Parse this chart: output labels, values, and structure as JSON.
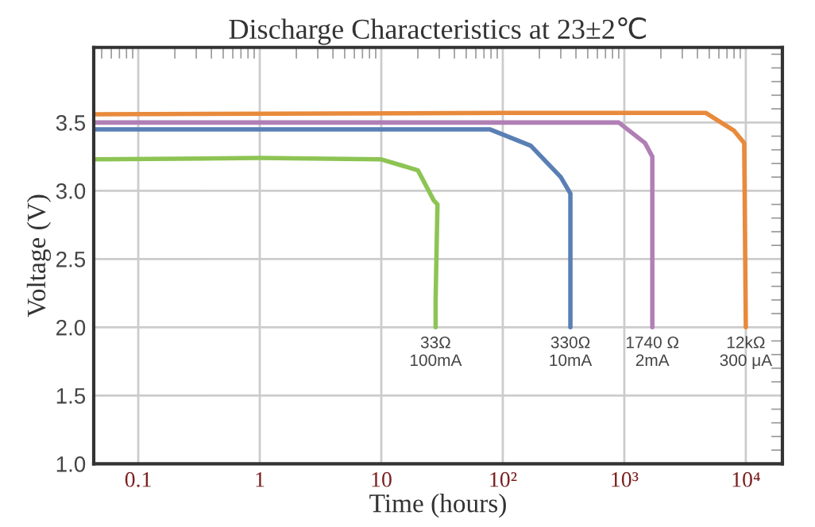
{
  "chart_data": {
    "type": "line",
    "title": "Discharge Characteristics at 23±2℃",
    "xlabel": "Time (hours)",
    "ylabel": "Voltage (V)",
    "log": "x",
    "xlim": [
      0.043,
      20000
    ],
    "ylim": [
      1.0,
      4.05
    ],
    "xticks": [
      0.1,
      1,
      10,
      {
        "value": 100,
        "label": "10²"
      },
      {
        "value": 1000,
        "label": "10³"
      },
      {
        "value": 10000,
        "label": "10⁴"
      }
    ],
    "yticks": [
      {
        "value": 1.0,
        "label": "1.0"
      },
      {
        "value": 1.5,
        "label": "1.5"
      },
      {
        "value": 2.0,
        "label": "2.0"
      },
      {
        "value": 2.5,
        "label": "2.5"
      },
      {
        "value": 3.0,
        "label": "3.0"
      },
      {
        "value": 3.5,
        "label": "3.5"
      }
    ],
    "grid": true,
    "marker": "none",
    "line_style": "solid",
    "series": [
      {
        "color": "#8dc454",
        "x": [
          0.043,
          1,
          10,
          20,
          27,
          29,
          28,
          28
        ],
        "values": [
          3.23,
          3.24,
          3.23,
          3.15,
          2.93,
          2.9,
          2.2,
          2.0
        ]
      },
      {
        "color": "#5a7fb5",
        "x": [
          0.043,
          10,
          78,
          170,
          300,
          360,
          360
        ],
        "values": [
          3.45,
          3.45,
          3.45,
          3.33,
          3.1,
          2.98,
          2.0
        ]
      },
      {
        "color": "#b07fb5",
        "x": [
          0.043,
          100,
          900,
          1480,
          1700,
          1700
        ],
        "values": [
          3.5,
          3.5,
          3.5,
          3.35,
          3.25,
          2.0
        ]
      },
      {
        "color": "#e88a3c",
        "x": [
          0.043,
          100,
          4700,
          8000,
          9700,
          10000
        ],
        "values": [
          3.56,
          3.57,
          3.57,
          3.44,
          3.35,
          2.0
        ]
      }
    ],
    "annotations": [
      {
        "text": "33Ω\n100mA",
        "x": 28,
        "y": 2.0
      },
      {
        "text": "330Ω\n10mA",
        "x": 360,
        "y": 2.0
      },
      {
        "text": "1740 Ω\n2mA",
        "x": 1700,
        "y": 2.0
      },
      {
        "text": "12kΩ\n300 μA",
        "x": 10000,
        "y": 2.0
      }
    ]
  }
}
